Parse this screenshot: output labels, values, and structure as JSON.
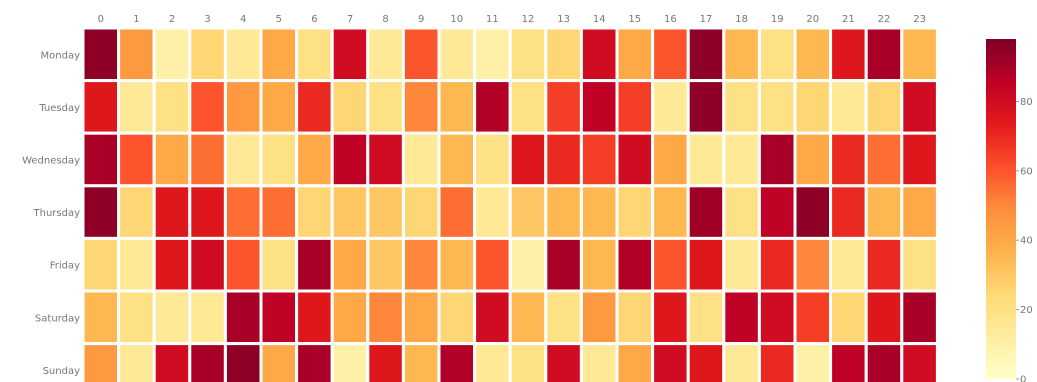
{
  "chart_data": {
    "type": "heatmap",
    "x": [
      "0",
      "1",
      "2",
      "3",
      "4",
      "5",
      "6",
      "7",
      "8",
      "9",
      "10",
      "11",
      "12",
      "13",
      "14",
      "15",
      "16",
      "17",
      "18",
      "19",
      "20",
      "21",
      "22",
      "23"
    ],
    "y": [
      "Monday",
      "Tuesday",
      "Wednesday",
      "Thursday",
      "Friday",
      "Saturday",
      "Sunday"
    ],
    "values": [
      [
        95,
        45,
        10,
        25,
        15,
        40,
        20,
        80,
        15,
        60,
        15,
        10,
        20,
        25,
        80,
        40,
        60,
        95,
        35,
        20,
        35,
        75,
        90,
        35
      ],
      [
        75,
        15,
        20,
        60,
        45,
        40,
        70,
        25,
        20,
        50,
        35,
        88,
        20,
        65,
        85,
        65,
        15,
        95,
        20,
        20,
        25,
        15,
        25,
        80
      ],
      [
        90,
        60,
        40,
        55,
        15,
        20,
        40,
        85,
        80,
        15,
        35,
        20,
        75,
        70,
        65,
        80,
        40,
        15,
        15,
        90,
        40,
        70,
        55,
        75
      ],
      [
        95,
        25,
        75,
        75,
        55,
        55,
        25,
        30,
        30,
        25,
        55,
        15,
        30,
        35,
        35,
        25,
        35,
        92,
        20,
        85,
        95,
        70,
        35,
        40
      ],
      [
        25,
        15,
        75,
        80,
        60,
        20,
        90,
        40,
        30,
        50,
        35,
        60,
        10,
        90,
        35,
        88,
        60,
        75,
        15,
        70,
        50,
        15,
        70,
        20
      ],
      [
        35,
        20,
        15,
        15,
        90,
        85,
        75,
        40,
        50,
        40,
        25,
        80,
        35,
        20,
        45,
        25,
        75,
        20,
        85,
        80,
        65,
        25,
        75,
        90
      ],
      [
        45,
        15,
        80,
        90,
        95,
        40,
        90,
        10,
        75,
        35,
        88,
        15,
        20,
        80,
        15,
        40,
        80,
        75,
        15,
        70,
        10,
        85,
        90,
        80
      ]
    ],
    "colorbar": {
      "ticks": [
        0,
        20,
        40,
        60,
        80
      ],
      "range": [
        0,
        98
      ]
    },
    "colormap": "YlOrRd",
    "colors": [
      "#ffffcc",
      "#ffeda0",
      "#fed976",
      "#feb24c",
      "#fd8d3c",
      "#fc4e2a",
      "#e31a1c",
      "#bd0026",
      "#800026"
    ],
    "grid_line_color": "#ffffff"
  }
}
